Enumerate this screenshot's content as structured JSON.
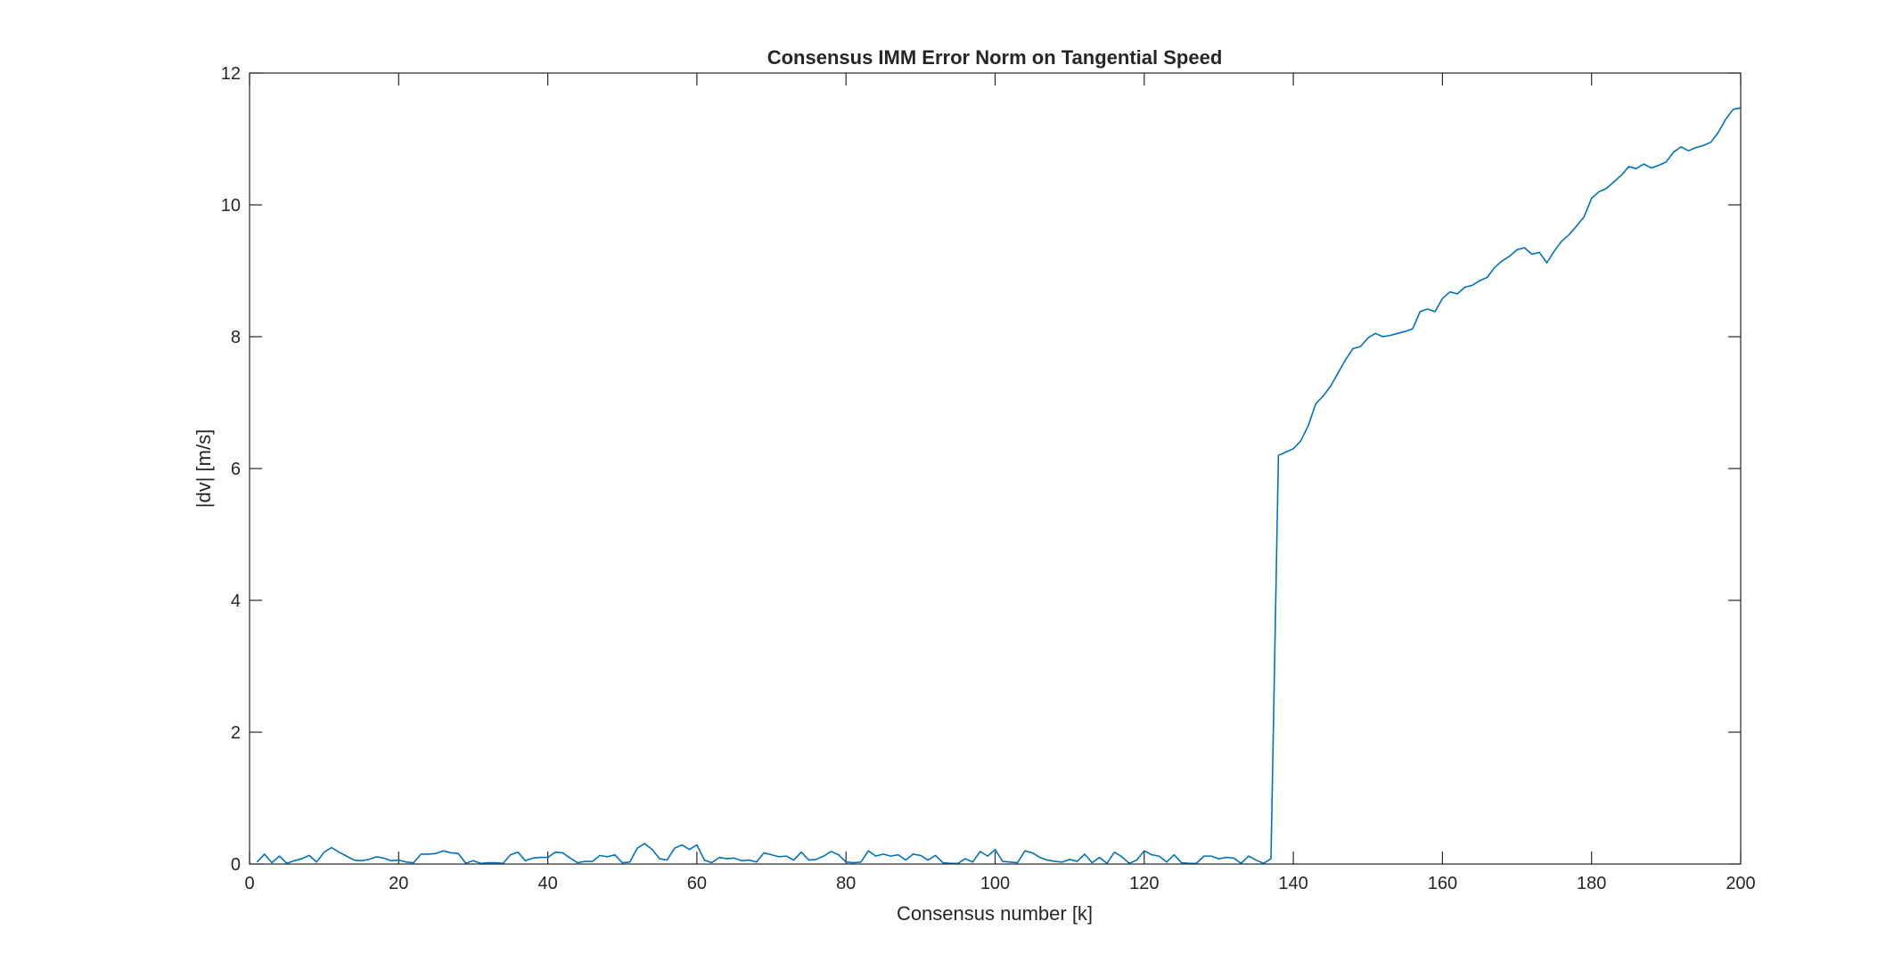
{
  "chart_data": {
    "type": "line",
    "title": "Consensus IMM Error Norm on Tangential Speed",
    "xlabel": "Consensus number [k]",
    "ylabel": "|dv| [m/s]",
    "xlim": [
      0,
      200
    ],
    "ylim": [
      0,
      12
    ],
    "xticks": [
      0,
      20,
      40,
      60,
      80,
      100,
      120,
      140,
      160,
      180,
      200
    ],
    "yticks": [
      0,
      2,
      4,
      6,
      8,
      10,
      12
    ],
    "xtick_labels": [
      "0",
      "20",
      "40",
      "60",
      "80",
      "100",
      "120",
      "140",
      "160",
      "180",
      "200"
    ],
    "ytick_labels": [
      "0",
      "2",
      "4",
      "6",
      "8",
      "10",
      "12"
    ],
    "grid": false,
    "box": true,
    "line_color": "#0072BD",
    "series": [
      {
        "x": [
          1,
          2,
          3,
          4,
          5,
          6,
          7,
          8,
          9,
          10,
          11,
          12,
          13,
          14,
          15,
          16,
          17,
          18,
          19,
          20,
          21,
          22,
          23,
          24,
          25,
          26,
          27,
          28,
          29,
          30,
          31,
          32,
          33,
          34,
          35,
          36,
          37,
          38,
          39,
          40,
          41,
          42,
          43,
          44,
          45,
          46,
          47,
          48,
          49,
          50,
          51,
          52,
          53,
          54,
          55,
          56,
          57,
          58,
          59,
          60,
          61,
          62,
          63,
          64,
          65,
          66,
          67,
          68,
          69,
          70,
          71,
          72,
          73,
          74,
          75,
          76,
          77,
          78,
          79,
          80,
          81,
          82,
          83,
          84,
          85,
          86,
          87,
          88,
          89,
          90,
          91,
          92,
          93,
          94,
          95,
          96,
          97,
          98,
          99,
          100,
          101,
          102,
          103,
          104,
          105,
          106,
          107,
          108,
          109,
          110,
          111,
          112,
          113,
          114,
          115,
          116,
          117,
          118,
          119,
          120,
          121,
          122,
          123,
          124,
          125,
          126,
          127,
          128,
          129,
          130,
          131,
          132,
          133,
          134,
          135,
          136,
          137,
          138,
          139,
          140,
          141,
          142,
          143,
          144,
          145,
          146,
          147,
          148,
          149,
          150,
          151,
          152,
          153,
          154,
          155,
          156,
          157,
          158,
          159,
          160,
          161,
          162,
          163,
          164,
          165,
          166,
          167,
          168,
          169,
          170,
          171,
          172,
          173,
          174,
          175,
          176,
          177,
          178,
          179,
          180,
          181,
          182,
          183,
          184,
          185,
          186,
          187,
          188,
          189,
          190,
          191,
          192,
          193,
          194,
          195,
          196,
          197,
          198,
          199,
          200
        ],
        "y": [
          0.03,
          0.15,
          0.02,
          0.12,
          0.01,
          0.05,
          0.08,
          0.13,
          0.03,
          0.18,
          0.25,
          0.18,
          0.12,
          0.06,
          0.05,
          0.07,
          0.11,
          0.09,
          0.05,
          0.06,
          0.03,
          0.02,
          0.15,
          0.15,
          0.16,
          0.2,
          0.17,
          0.16,
          0.01,
          0.05,
          0.01,
          0.02,
          0.02,
          0.01,
          0.14,
          0.18,
          0.05,
          0.09,
          0.1,
          0.1,
          0.18,
          0.17,
          0.09,
          0.02,
          0.04,
          0.04,
          0.13,
          0.11,
          0.14,
          0.02,
          0.03,
          0.24,
          0.31,
          0.22,
          0.08,
          0.06,
          0.24,
          0.29,
          0.22,
          0.29,
          0.06,
          0.02,
          0.1,
          0.08,
          0.09,
          0.05,
          0.06,
          0.03,
          0.17,
          0.14,
          0.11,
          0.12,
          0.06,
          0.18,
          0.06,
          0.07,
          0.12,
          0.19,
          0.14,
          0.03,
          0.02,
          0.03,
          0.2,
          0.12,
          0.15,
          0.12,
          0.14,
          0.06,
          0.15,
          0.13,
          0.06,
          0.13,
          0.02,
          0.01,
          0.01,
          0.08,
          0.03,
          0.19,
          0.12,
          0.22,
          0.04,
          0.03,
          0.02,
          0.2,
          0.17,
          0.1,
          0.06,
          0.04,
          0.03,
          0.07,
          0.04,
          0.15,
          0.02,
          0.1,
          0.01,
          0.18,
          0.11,
          0.01,
          0.06,
          0.2,
          0.14,
          0.12,
          0.03,
          0.14,
          0.02,
          0.01,
          0.01,
          0.12,
          0.12,
          0.08,
          0.1,
          0.09,
          0.01,
          0.12,
          0.06,
          0.01,
          0.08,
          6.2,
          6.25,
          6.3,
          6.42,
          6.65,
          6.98,
          7.1,
          7.25,
          7.45,
          7.65,
          7.82,
          7.85,
          7.98,
          8.05,
          8.0,
          8.02,
          8.05,
          8.08,
          8.12,
          8.38,
          8.42,
          8.38,
          8.58,
          8.68,
          8.65,
          8.75,
          8.78,
          8.85,
          8.9,
          9.05,
          9.15,
          9.22,
          9.32,
          9.35,
          9.25,
          9.28,
          9.12,
          9.3,
          9.45,
          9.55,
          9.68,
          9.82,
          10.1,
          10.2,
          10.25,
          10.35,
          10.45,
          10.58,
          10.55,
          10.62,
          10.56,
          10.6,
          10.65,
          10.8,
          10.88,
          10.82,
          10.87,
          10.9,
          10.95,
          11.1,
          11.3,
          11.45,
          11.47
        ]
      }
    ]
  }
}
